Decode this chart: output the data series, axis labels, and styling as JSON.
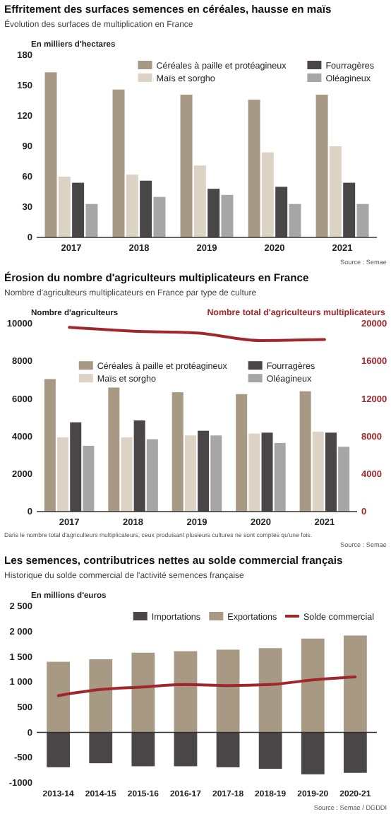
{
  "chart_data": [
    {
      "type": "bar",
      "title": "Effritement des surfaces semences en céréales, hausse en maïs",
      "subtitle": "Évolution des surfaces de multiplication en France",
      "ylabel": "En milliers d'hectares",
      "categories": [
        "2017",
        "2018",
        "2019",
        "2020",
        "2021"
      ],
      "series": [
        {
          "name": "Céréales à paille et protéagineux",
          "color": "#a89984",
          "values": [
            163,
            146,
            141,
            136,
            141
          ]
        },
        {
          "name": "Maïs et sorgho",
          "color": "#ddd3c5",
          "values": [
            60,
            62,
            71,
            84,
            90
          ]
        },
        {
          "name": "Fourragères",
          "color": "#4a4647",
          "values": [
            54,
            56,
            48,
            50,
            54
          ]
        },
        {
          "name": "Oléagineux",
          "color": "#a7a6a6",
          "values": [
            33,
            40,
            42,
            33,
            33
          ]
        }
      ],
      "ylim": [
        0,
        180
      ],
      "yticks": [
        0,
        30,
        60,
        90,
        120,
        150,
        180
      ],
      "legend": "top right",
      "annotations": [
        "Source : Semae"
      ]
    },
    {
      "type": "bar",
      "title": "Érosion du nombre d'agriculteurs multiplicateurs en France",
      "subtitle": "Nombre d'agriculteurs multiplicateurs en France par type de culture",
      "ylabel": "Nombre d'agriculteurs",
      "y2label": "Nombre total d'agriculteurs multiplicateurs",
      "categories": [
        "2017",
        "2018",
        "2019",
        "2020",
        "2021"
      ],
      "series": [
        {
          "name": "Céréales à paille et protéagineux",
          "color": "#a89984",
          "values": [
            7050,
            6600,
            6350,
            6250,
            6400
          ]
        },
        {
          "name": "Maïs et sorgho",
          "color": "#ddd3c5",
          "values": [
            3950,
            3950,
            4050,
            4150,
            4250
          ]
        },
        {
          "name": "Fourragères",
          "color": "#4a4647",
          "values": [
            4750,
            4850,
            4300,
            4200,
            4200
          ]
        },
        {
          "name": "Oléagineux",
          "color": "#a7a6a6",
          "values": [
            3500,
            3850,
            4050,
            3650,
            3450
          ]
        },
        {
          "type": "line",
          "axis": "y2",
          "color": "#a0282d",
          "values": [
            19600,
            19200,
            19000,
            18200,
            18300
          ]
        }
      ],
      "ylim": [
        0,
        10000
      ],
      "yticks": [
        0,
        2000,
        4000,
        6000,
        8000,
        10000
      ],
      "y2lim": [
        0,
        20000
      ],
      "y2ticks": [
        0,
        4000,
        8000,
        12000,
        16000,
        20000
      ],
      "legend": "top",
      "marker": "none",
      "annotations": [
        "Dans le nombre total d'agriculteurs multiplicateurs, ceux produisant plusieurs cultures ne sont comptés qu'une fois.",
        "Source : Semae"
      ]
    },
    {
      "type": "bar",
      "title": "Les semences, contributrices nettes au solde commercial français",
      "subtitle": "Historique du solde commercial de l'activité semences française",
      "ylabel": "En millions d'euros",
      "categories": [
        "2013-14",
        "2014-15",
        "2015-16",
        "2016-17",
        "2017-18",
        "2018-19",
        "2019-20",
        "2020-21"
      ],
      "stacked": true,
      "series": [
        {
          "name": "Importations",
          "color": "#4a4647",
          "values": [
            -690,
            -610,
            -670,
            -670,
            -690,
            -720,
            -830,
            -800
          ]
        },
        {
          "name": "Exportations",
          "color": "#a89984",
          "values": [
            1400,
            1450,
            1580,
            1610,
            1640,
            1670,
            1860,
            1920
          ]
        },
        {
          "name": "Solde commercial",
          "type": "line",
          "color": "#a0282d",
          "values": [
            730,
            850,
            900,
            950,
            930,
            950,
            1040,
            1100
          ]
        }
      ],
      "ylim": [
        -1000,
        2500
      ],
      "yticks": [
        {
          "value": -1000,
          "label": "-1000"
        },
        {
          "value": -500,
          "label": "-500"
        },
        0,
        500,
        {
          "value": 1000,
          "label": "1 000"
        },
        {
          "value": 1500,
          "label": "1 500"
        },
        {
          "value": 2000,
          "label": "2 000"
        },
        {
          "value": 2500,
          "label": "2 500"
        }
      ],
      "legend": "top right",
      "marker": "none",
      "annotations": [
        "Source : Semae / DGDDI"
      ]
    }
  ]
}
